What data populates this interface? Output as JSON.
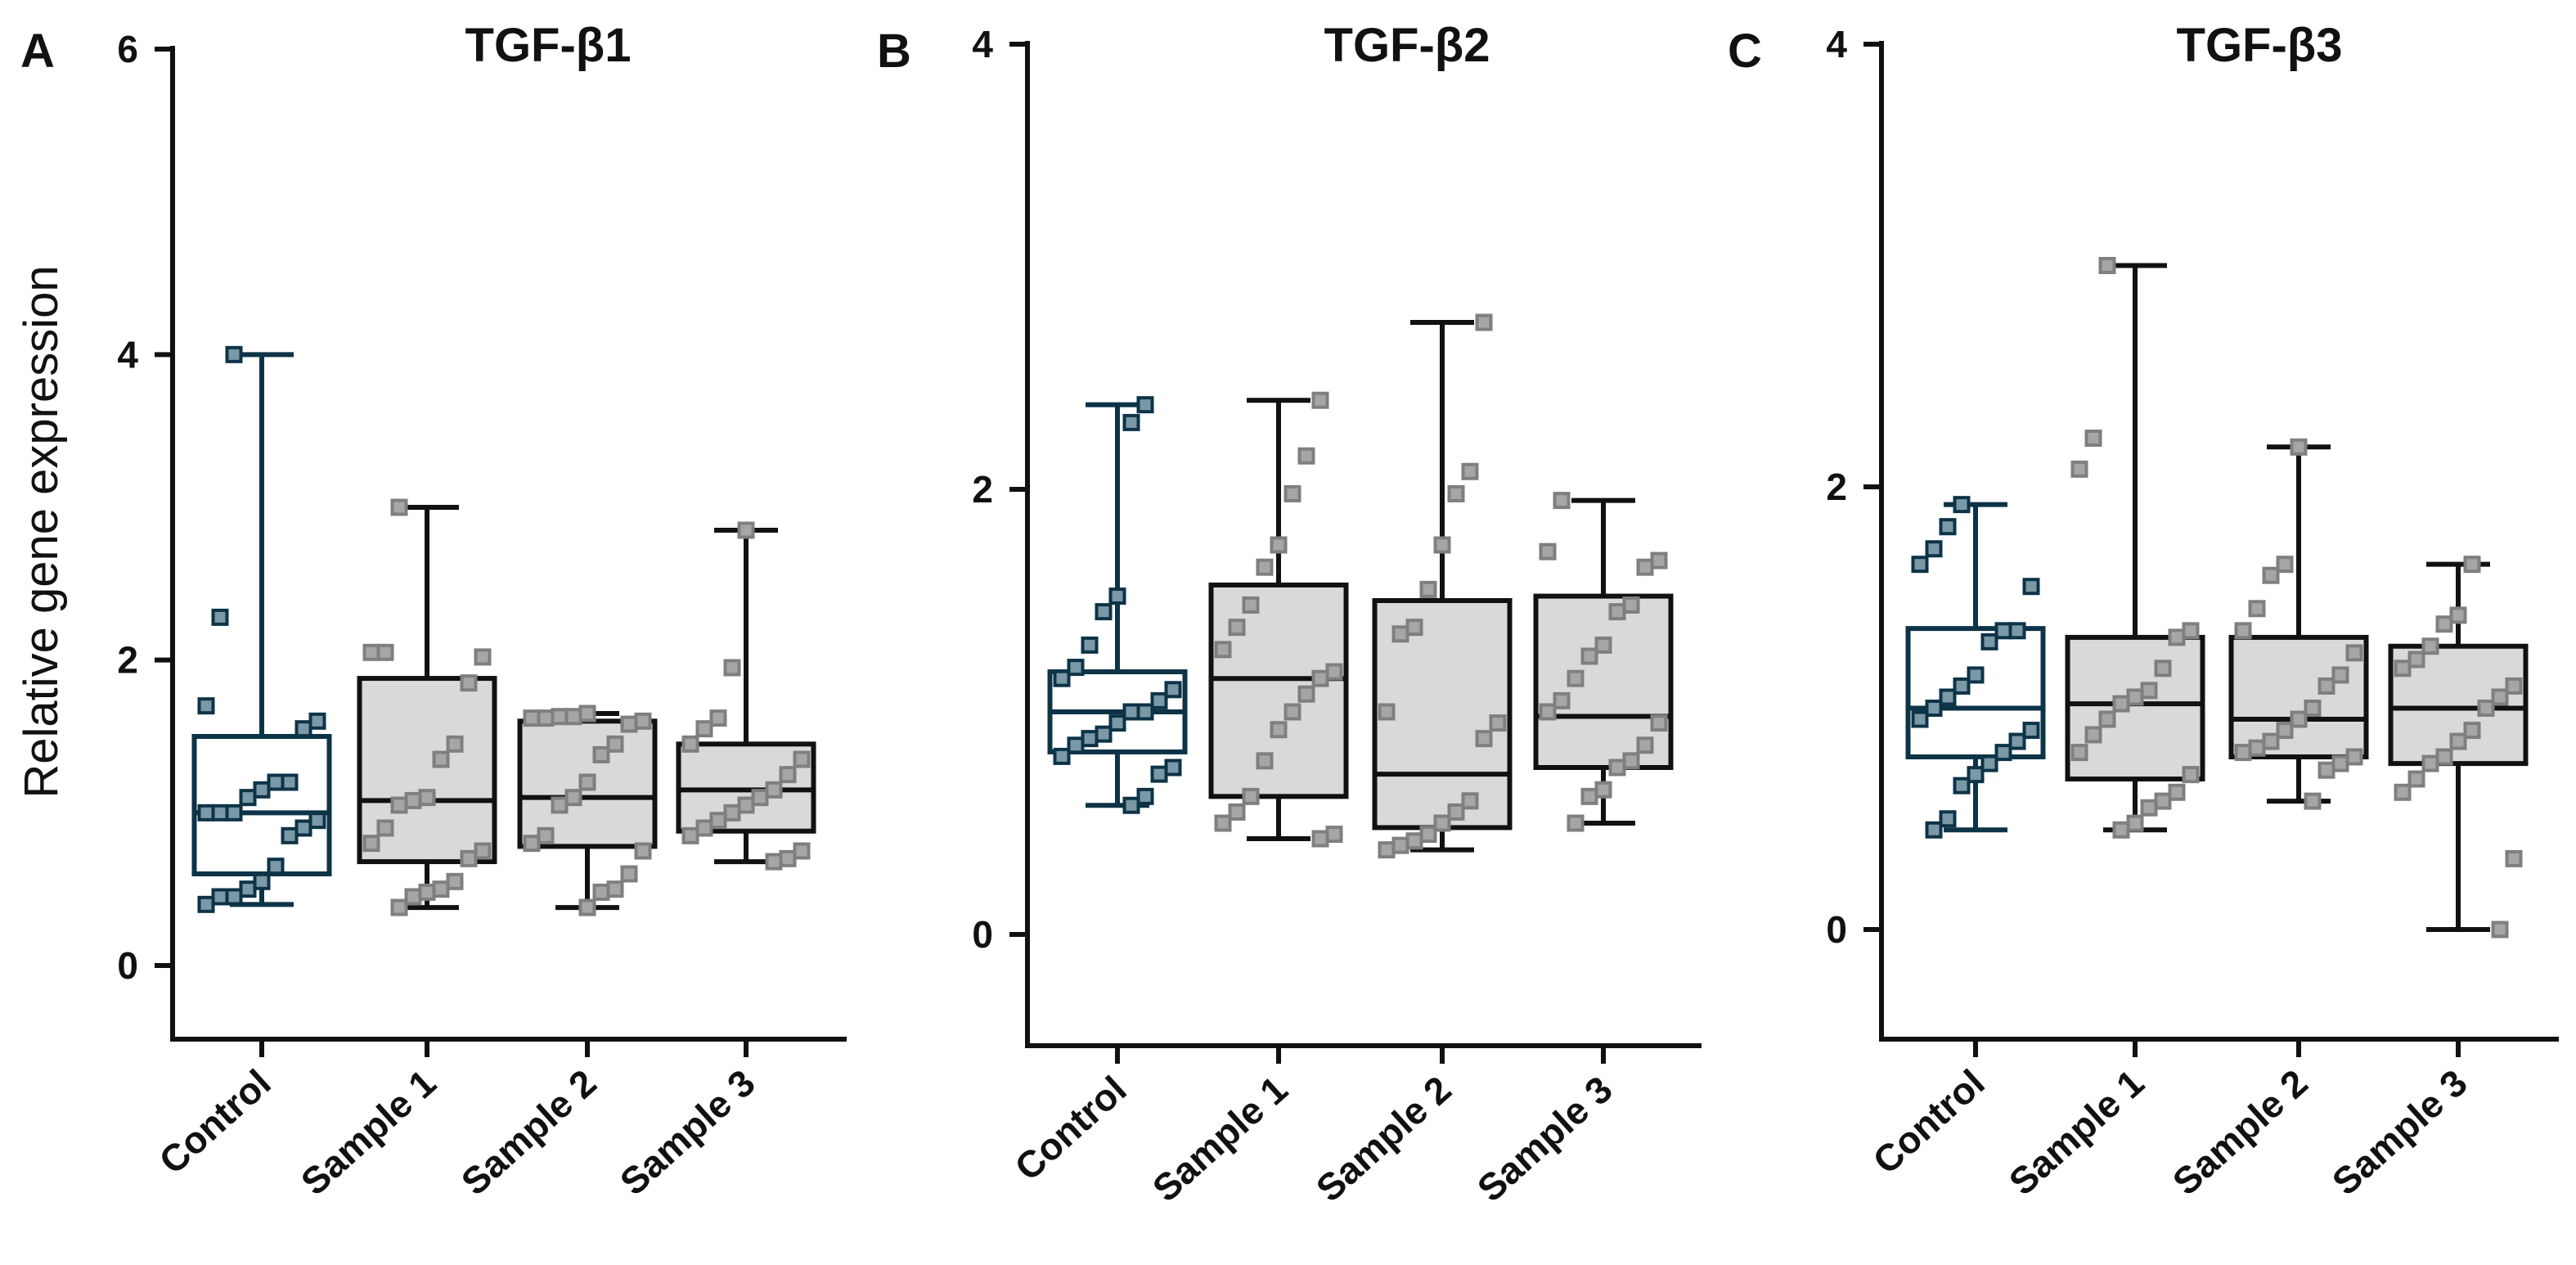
{
  "ylabel": "Relative gene expression",
  "colors": {
    "control": "#0d3347",
    "control_marker": "#7a98a6",
    "sample": "#111111",
    "sample_fill": "#d9d9d9",
    "sample_marker": "#a6a6a6"
  },
  "chart_data": [
    {
      "type": "box",
      "panel": "A",
      "title": "TGF-β1",
      "ylim": [
        -0.65,
        6
      ],
      "yticks": [
        "0",
        "2",
        "4",
        "6"
      ],
      "categories": [
        "Control",
        "Sample 1",
        "Sample 2",
        "Sample 3"
      ],
      "series": [
        {
          "name": "Control",
          "min": 0.4,
          "q1": 0.6,
          "median": 1.0,
          "q3": 1.5,
          "max": 4.0,
          "points": [
            0.4,
            0.45,
            0.45,
            0.5,
            0.55,
            0.65,
            0.85,
            0.9,
            0.95,
            1.0,
            1.0,
            1.0,
            1.1,
            1.15,
            1.2,
            1.2,
            1.55,
            1.6,
            1.7,
            2.28,
            4.0
          ]
        },
        {
          "name": "Sample 1",
          "min": 0.38,
          "q1": 0.68,
          "median": 1.08,
          "q3": 1.88,
          "max": 3.0,
          "points": [
            0.38,
            0.45,
            0.48,
            0.5,
            0.55,
            0.7,
            0.75,
            0.8,
            0.9,
            1.05,
            1.08,
            1.1,
            1.35,
            1.45,
            1.85,
            2.02,
            2.05,
            2.05,
            3.0
          ]
        },
        {
          "name": "Sample 2",
          "min": 0.38,
          "q1": 0.78,
          "median": 1.1,
          "q3": 1.6,
          "max": 1.65,
          "points": [
            0.38,
            0.48,
            0.5,
            0.6,
            0.75,
            0.8,
            0.85,
            1.05,
            1.1,
            1.2,
            1.38,
            1.45,
            1.58,
            1.6,
            1.62,
            1.62,
            1.63,
            1.63,
            1.65
          ]
        },
        {
          "name": "Sample 3",
          "min": 0.68,
          "q1": 0.88,
          "median": 1.15,
          "q3": 1.45,
          "max": 2.85,
          "points": [
            0.68,
            0.7,
            0.75,
            0.85,
            0.9,
            0.95,
            1.0,
            1.05,
            1.1,
            1.15,
            1.25,
            1.35,
            1.45,
            1.55,
            1.62,
            1.95,
            2.85
          ]
        }
      ]
    },
    {
      "type": "box",
      "panel": "B",
      "title": "TGF-β2",
      "ylim": [
        -0.5,
        4
      ],
      "yticks": [
        "0",
        "2",
        "4"
      ],
      "categories": [
        "Control",
        "Sample 1",
        "Sample 2",
        "Sample 3"
      ],
      "series": [
        {
          "name": "Control",
          "min": 0.58,
          "q1": 0.82,
          "median": 1.0,
          "q3": 1.18,
          "max": 2.38,
          "points": [
            0.58,
            0.62,
            0.72,
            0.75,
            0.8,
            0.85,
            0.88,
            0.9,
            0.95,
            1.0,
            1.0,
            1.05,
            1.1,
            1.15,
            1.2,
            1.3,
            1.45,
            1.52,
            2.3,
            2.38
          ]
        },
        {
          "name": "Sample 1",
          "min": 0.43,
          "q1": 0.62,
          "median": 1.15,
          "q3": 1.57,
          "max": 2.4,
          "points": [
            0.43,
            0.45,
            0.5,
            0.55,
            0.62,
            0.78,
            0.92,
            1.0,
            1.08,
            1.15,
            1.18,
            1.28,
            1.38,
            1.48,
            1.65,
            1.75,
            1.98,
            2.15,
            2.4
          ]
        },
        {
          "name": "Sample 2",
          "min": 0.38,
          "q1": 0.48,
          "median": 0.72,
          "q3": 1.5,
          "max": 2.75,
          "points": [
            0.38,
            0.4,
            0.42,
            0.45,
            0.5,
            0.55,
            0.6,
            0.88,
            0.95,
            1.0,
            1.35,
            1.38,
            1.55,
            1.75,
            1.98,
            2.08,
            2.75
          ]
        },
        {
          "name": "Sample 3",
          "min": 0.5,
          "q1": 0.75,
          "median": 0.98,
          "q3": 1.52,
          "max": 1.95,
          "points": [
            0.5,
            0.62,
            0.65,
            0.75,
            0.78,
            0.85,
            0.95,
            1.0,
            1.05,
            1.15,
            1.25,
            1.3,
            1.45,
            1.48,
            1.65,
            1.68,
            1.72,
            1.95
          ]
        }
      ]
    },
    {
      "type": "box",
      "panel": "C",
      "title": "TGF-β3",
      "ylim": [
        -0.5,
        4
      ],
      "yticks": [
        "0",
        "2",
        "4"
      ],
      "categories": [
        "Control",
        "Sample 1",
        "Sample 2",
        "Sample 3"
      ],
      "series": [
        {
          "name": "Control",
          "min": 0.45,
          "q1": 0.78,
          "median": 1.0,
          "q3": 1.36,
          "max": 1.92,
          "points": [
            0.45,
            0.5,
            0.65,
            0.7,
            0.75,
            0.8,
            0.85,
            0.9,
            0.95,
            1.0,
            1.05,
            1.1,
            1.15,
            1.3,
            1.35,
            1.35,
            1.55,
            1.65,
            1.72,
            1.82,
            1.92
          ]
        },
        {
          "name": "Sample 1",
          "min": 0.45,
          "q1": 0.68,
          "median": 1.02,
          "q3": 1.32,
          "max": 3.0,
          "points": [
            0.45,
            0.48,
            0.55,
            0.58,
            0.62,
            0.7,
            0.8,
            0.88,
            0.95,
            1.02,
            1.05,
            1.08,
            1.18,
            1.32,
            1.35,
            2.08,
            2.22,
            3.0
          ]
        },
        {
          "name": "Sample 2",
          "min": 0.58,
          "q1": 0.78,
          "median": 0.95,
          "q3": 1.32,
          "max": 2.18,
          "points": [
            0.58,
            0.72,
            0.75,
            0.78,
            0.8,
            0.82,
            0.85,
            0.9,
            0.95,
            1.0,
            1.1,
            1.15,
            1.25,
            1.35,
            1.45,
            1.6,
            1.65,
            2.18
          ]
        },
        {
          "name": "Sample 3",
          "min": 0.0,
          "q1": 0.75,
          "median": 1.0,
          "q3": 1.28,
          "max": 1.65,
          "points": [
            0.0,
            0.32,
            0.62,
            0.68,
            0.75,
            0.78,
            0.85,
            0.9,
            1.0,
            1.05,
            1.1,
            1.18,
            1.22,
            1.28,
            1.38,
            1.42,
            1.65
          ]
        }
      ]
    }
  ]
}
